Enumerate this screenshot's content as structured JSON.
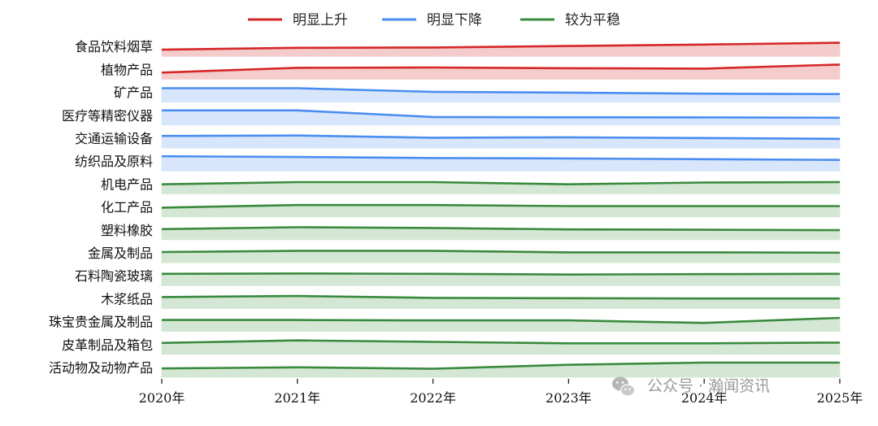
{
  "chart_data": {
    "type": "area",
    "x": [
      "2020年",
      "2021年",
      "2022年",
      "2023年",
      "2024年",
      "2025年"
    ],
    "legend": [
      {
        "key": "up",
        "label": "明显上升",
        "color": "#d62728",
        "fill": "#f4cccc"
      },
      {
        "key": "down",
        "label": "明显下降",
        "color": "#4a8df0",
        "fill": "#d8e6fb"
      },
      {
        "key": "flat",
        "label": "较为平稳",
        "color": "#3a8a3e",
        "fill": "#d4e7d4"
      }
    ],
    "legend_placement": "top-center",
    "series": [
      {
        "name": "食品饮料烟草",
        "group": "up",
        "values": [
          0.45,
          0.58,
          0.6,
          0.7,
          0.8,
          0.92
        ]
      },
      {
        "name": "植物产品",
        "group": "up",
        "values": [
          0.45,
          0.78,
          0.8,
          0.75,
          0.72,
          1.0
        ]
      },
      {
        "name": "矿产品",
        "group": "down",
        "values": [
          0.95,
          0.95,
          0.7,
          0.65,
          0.58,
          0.55
        ]
      },
      {
        "name": "医疗等精密仪器",
        "group": "down",
        "values": [
          1.0,
          1.0,
          0.55,
          0.53,
          0.52,
          0.5
        ]
      },
      {
        "name": "交通运输设备",
        "group": "down",
        "values": [
          0.82,
          0.85,
          0.7,
          0.73,
          0.68,
          0.62
        ]
      },
      {
        "name": "纺织品及原料",
        "group": "down",
        "values": [
          1.0,
          0.95,
          0.88,
          0.85,
          0.8,
          0.75
        ]
      },
      {
        "name": "机电产品",
        "group": "flat",
        "values": [
          0.65,
          0.8,
          0.8,
          0.65,
          0.77,
          0.8
        ]
      },
      {
        "name": "化工产品",
        "group": "flat",
        "values": [
          0.62,
          0.8,
          0.8,
          0.73,
          0.73,
          0.73
        ]
      },
      {
        "name": "塑料橡胶",
        "group": "flat",
        "values": [
          0.72,
          0.85,
          0.8,
          0.7,
          0.68,
          0.65
        ]
      },
      {
        "name": "金属及制品",
        "group": "flat",
        "values": [
          0.72,
          0.8,
          0.8,
          0.7,
          0.7,
          0.68
        ]
      },
      {
        "name": "石料陶瓷玻璃",
        "group": "flat",
        "values": [
          0.8,
          0.82,
          0.8,
          0.75,
          0.78,
          0.8
        ]
      },
      {
        "name": "木浆纸品",
        "group": "flat",
        "values": [
          0.78,
          0.85,
          0.72,
          0.7,
          0.68,
          0.68
        ]
      },
      {
        "name": "珠宝贵金属及制品",
        "group": "flat",
        "values": [
          0.78,
          0.78,
          0.75,
          0.75,
          0.58,
          0.92
        ]
      },
      {
        "name": "皮革制品及箱包",
        "group": "flat",
        "values": [
          0.78,
          0.95,
          0.85,
          0.75,
          0.75,
          0.8
        ]
      },
      {
        "name": "活动物及动物产品",
        "group": "flat",
        "values": [
          0.6,
          0.68,
          0.58,
          0.85,
          1.0,
          1.0
        ]
      }
    ],
    "grid": false
  },
  "watermark": {
    "icon": "wechat-icon",
    "text": "公众号 · 瀚闻资讯"
  }
}
